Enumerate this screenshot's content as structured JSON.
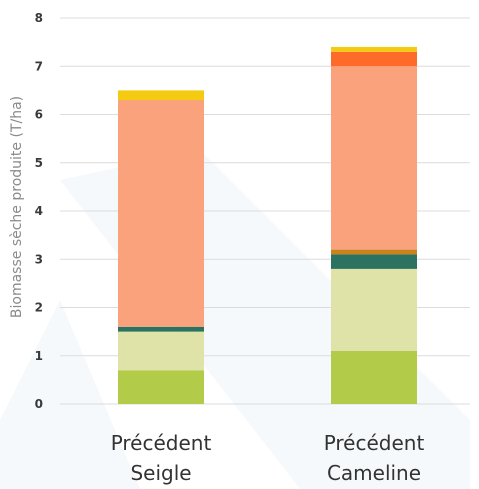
{
  "chart_data": {
    "type": "bar",
    "stacked": true,
    "title": "",
    "xlabel": "",
    "ylabel": "Biomasse sèche produite (T/ha)",
    "ylim": [
      0,
      8
    ],
    "yticks": [
      "0",
      "1",
      "2",
      "3",
      "4",
      "5",
      "6",
      "7",
      "8"
    ],
    "grid": true,
    "legend": "none",
    "categories": [
      [
        "Précédent",
        "Seigle"
      ],
      [
        "Précédent",
        "Cameline"
      ]
    ],
    "series": [
      {
        "color": "#b2cc4a",
        "values": [
          0.7,
          1.1
        ]
      },
      {
        "color": "#dfe3a8",
        "values": [
          0.8,
          1.7
        ]
      },
      {
        "color": "#2b7360",
        "values": [
          0.1,
          0.3
        ]
      },
      {
        "color": "#c9841e",
        "values": [
          0.0,
          0.1
        ]
      },
      {
        "color": "#f9a27c",
        "values": [
          4.7,
          3.8
        ]
      },
      {
        "color": "#fd6a2a",
        "values": [
          0.0,
          0.3
        ]
      },
      {
        "color": "#f5cb12",
        "values": [
          0.2,
          0.1
        ]
      }
    ]
  },
  "colors": {
    "grid": "#dcdcdc",
    "background_shape": "#eef4f7"
  }
}
